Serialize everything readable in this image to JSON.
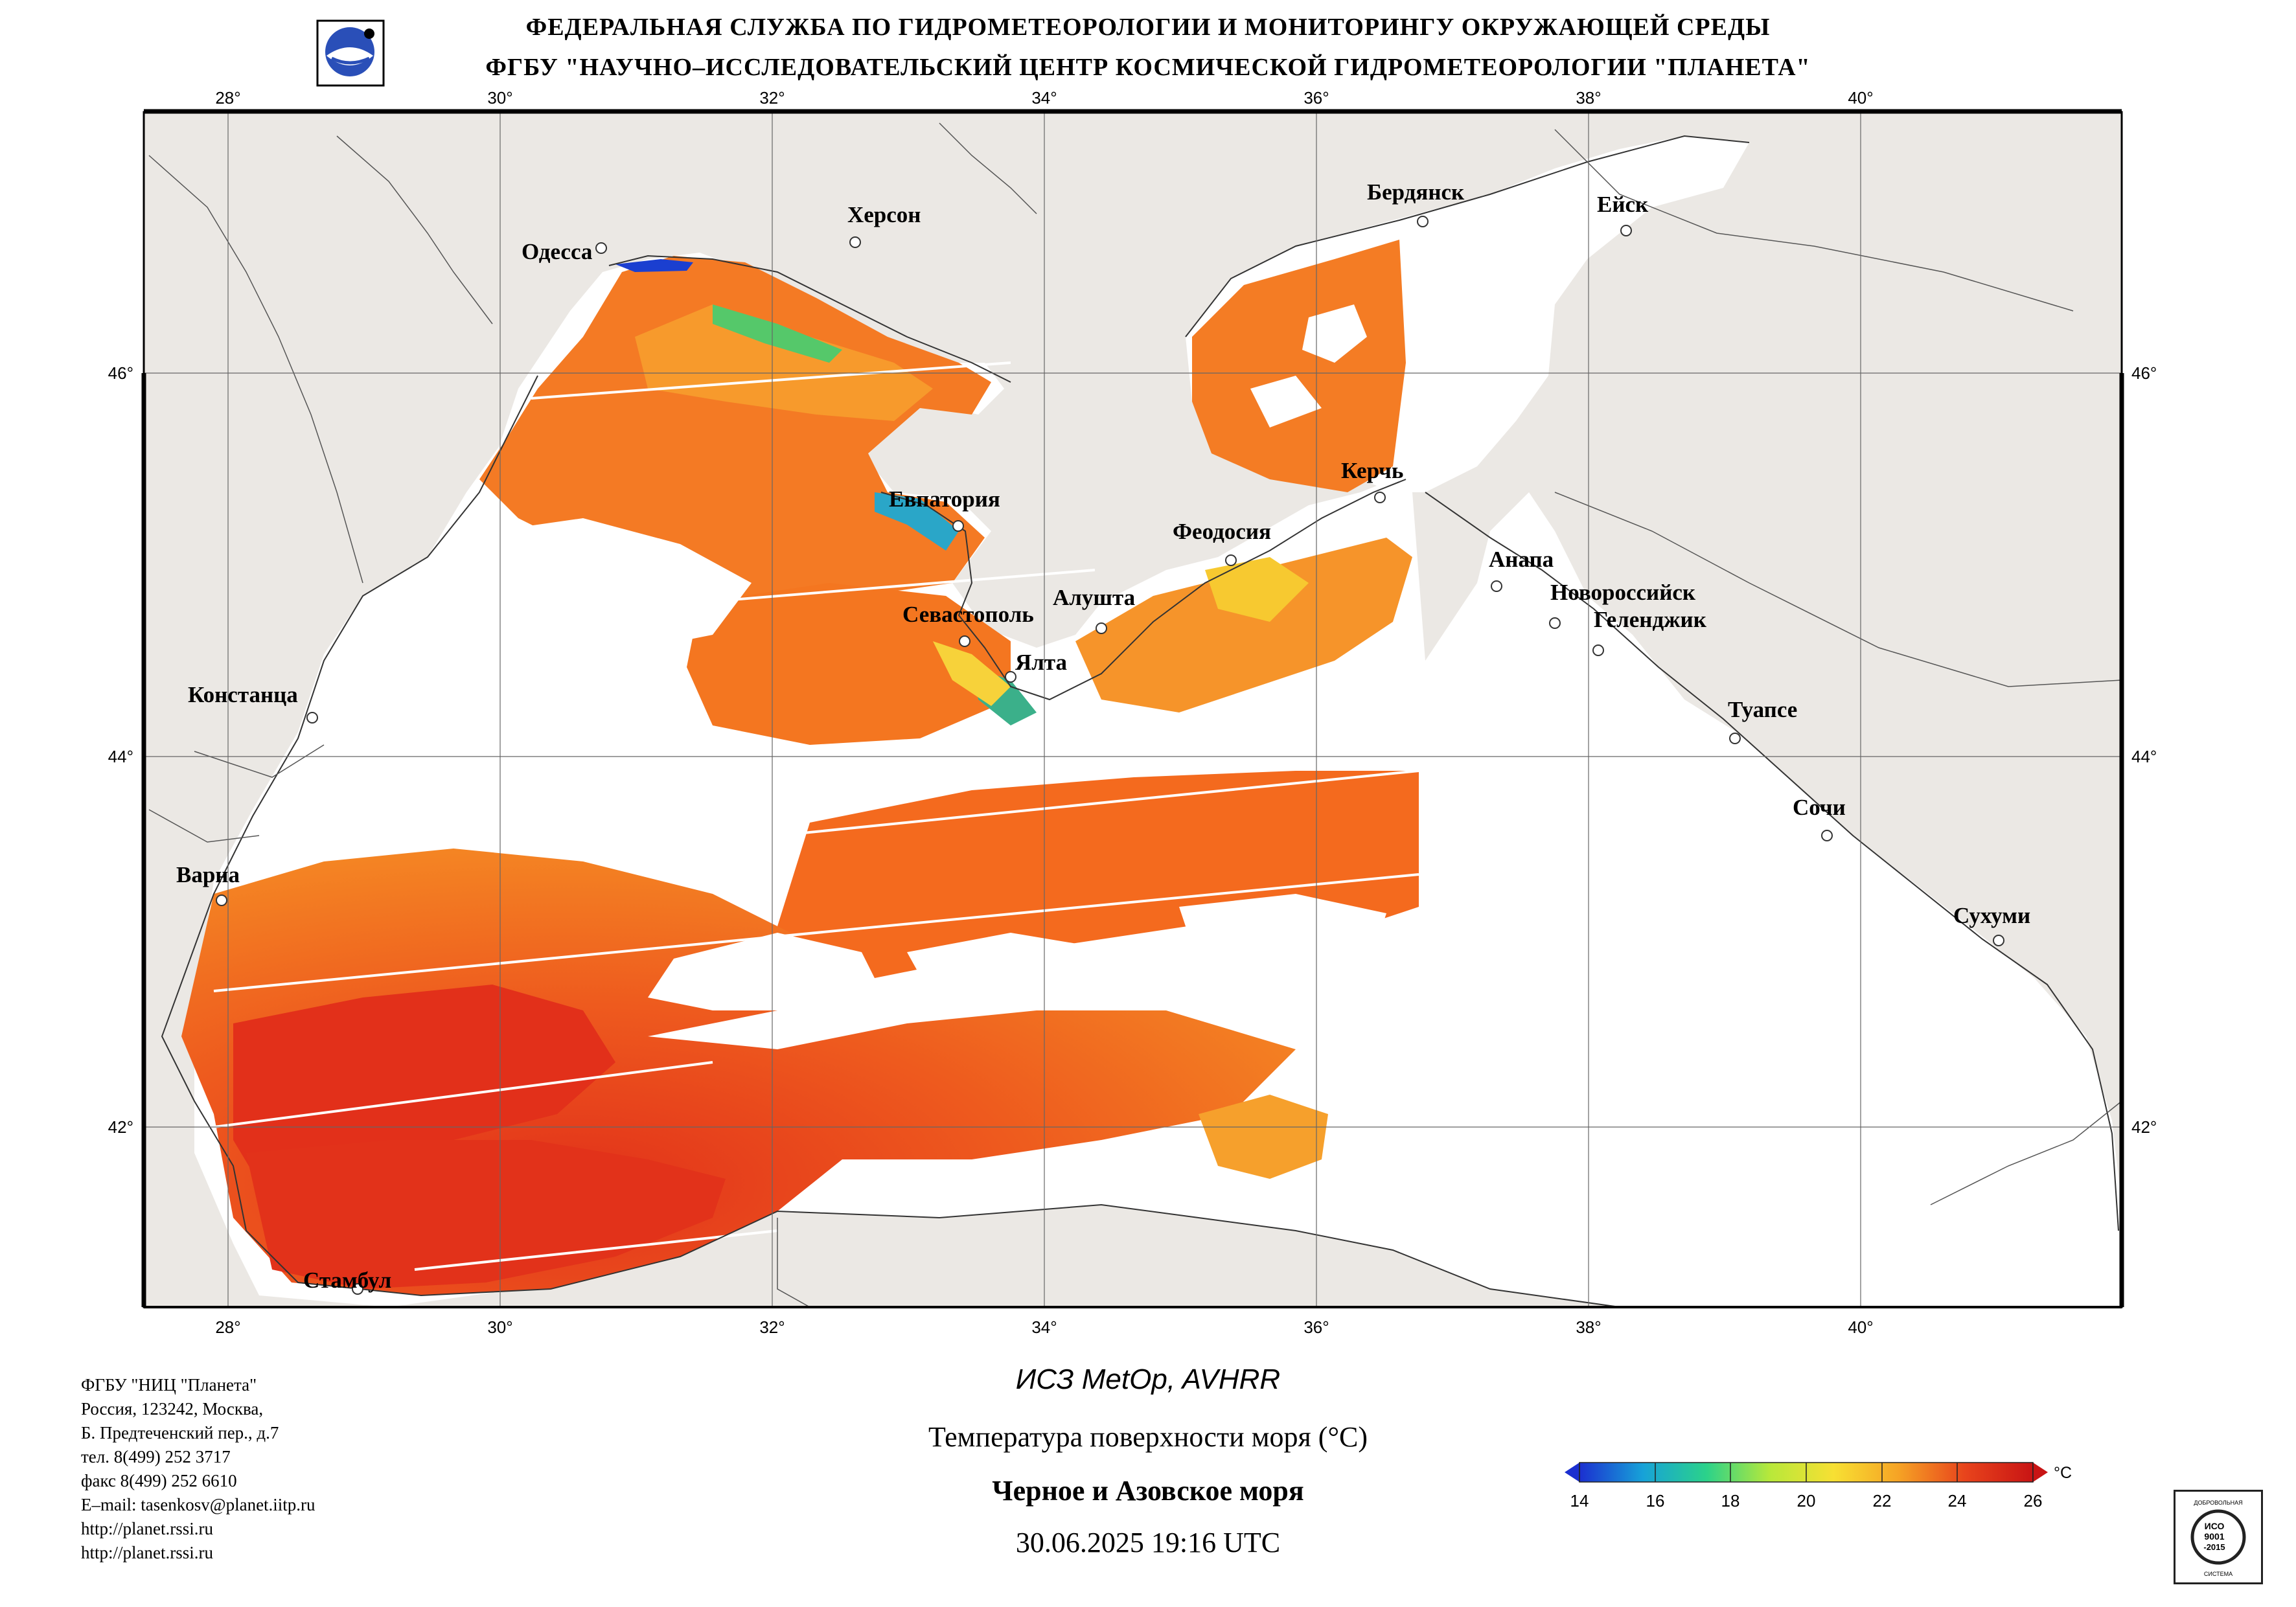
{
  "header": {
    "line1": "ФЕДЕРАЛЬНАЯ СЛУЖБА ПО ГИДРОМЕТЕОРОЛОГИИ И МОНИТОРИНГУ ОКРУЖАЮЩЕЙ СРЕДЫ",
    "line2": "ФГБУ \"НАУЧНО–ИССЛЕДОВАТЕЛЬСКИЙ ЦЕНТР КОСМИЧЕСКОЙ ГИДРОМЕТЕОРОЛОГИИ \"ПЛАНЕТА\""
  },
  "map": {
    "lon_labels": [
      "28°",
      "30°",
      "32°",
      "34°",
      "36°",
      "38°",
      "40°"
    ],
    "lat_labels": [
      "46°",
      "44°",
      "42°"
    ],
    "cities": [
      {
        "name": "Одесса"
      },
      {
        "name": "Херсон"
      },
      {
        "name": "Бердянск"
      },
      {
        "name": "Ейск"
      },
      {
        "name": "Керчь"
      },
      {
        "name": "Евпатория"
      },
      {
        "name": "Феодосия"
      },
      {
        "name": "Анапа"
      },
      {
        "name": "Новороссийск"
      },
      {
        "name": "Геленджик"
      },
      {
        "name": "Алушта"
      },
      {
        "name": "Севастополь"
      },
      {
        "name": "Ялта"
      },
      {
        "name": "Констанца"
      },
      {
        "name": "Туапсе"
      },
      {
        "name": "Сочи"
      },
      {
        "name": "Варна"
      },
      {
        "name": "Сухуми"
      },
      {
        "name": "Стамбул"
      }
    ],
    "colors": {
      "land": "#ebe8e4",
      "cloud_or_nodata": "#ffffff",
      "warm_sst": "#e63a18",
      "mid_sst": "#f57b22",
      "cool_sst": "#f7c12a"
    }
  },
  "address": {
    "lines": [
      "ФГБУ \"НИЦ \"Планета\"",
      "Россия, 123242, Москва,",
      "Б. Предтеченский пер., д.7",
      "тел. 8(499) 252 3717",
      "факс 8(499) 252 6610",
      "E–mail: tasenkosv@planet.iitp.ru",
      "http://planet.rssi.ru",
      "http://planet.rssi.ru"
    ]
  },
  "caption": {
    "satellite": "ИСЗ MetOp, AVHRR",
    "parameter": "Температура поверхности моря (°С)",
    "region": "Черное и Азовское моря",
    "datetime": "30.06.2025 19:16 UTC"
  },
  "colorbar": {
    "unit": "°С",
    "ticks": [
      "14",
      "16",
      "18",
      "20",
      "22",
      "24",
      "26"
    ],
    "min": 14,
    "max": 26,
    "stops": [
      "#1b2fd0",
      "#17a2d8",
      "#2bd28a",
      "#b8e83a",
      "#f7e033",
      "#f6a525",
      "#e8441c",
      "#c81414"
    ]
  },
  "iso_badge": {
    "top": "ДОБРОВОЛЬНАЯ",
    "mid1": "ИСО",
    "mid2": "9001",
    "mid3": "-2015",
    "bottom": "СИСТЕМА"
  }
}
